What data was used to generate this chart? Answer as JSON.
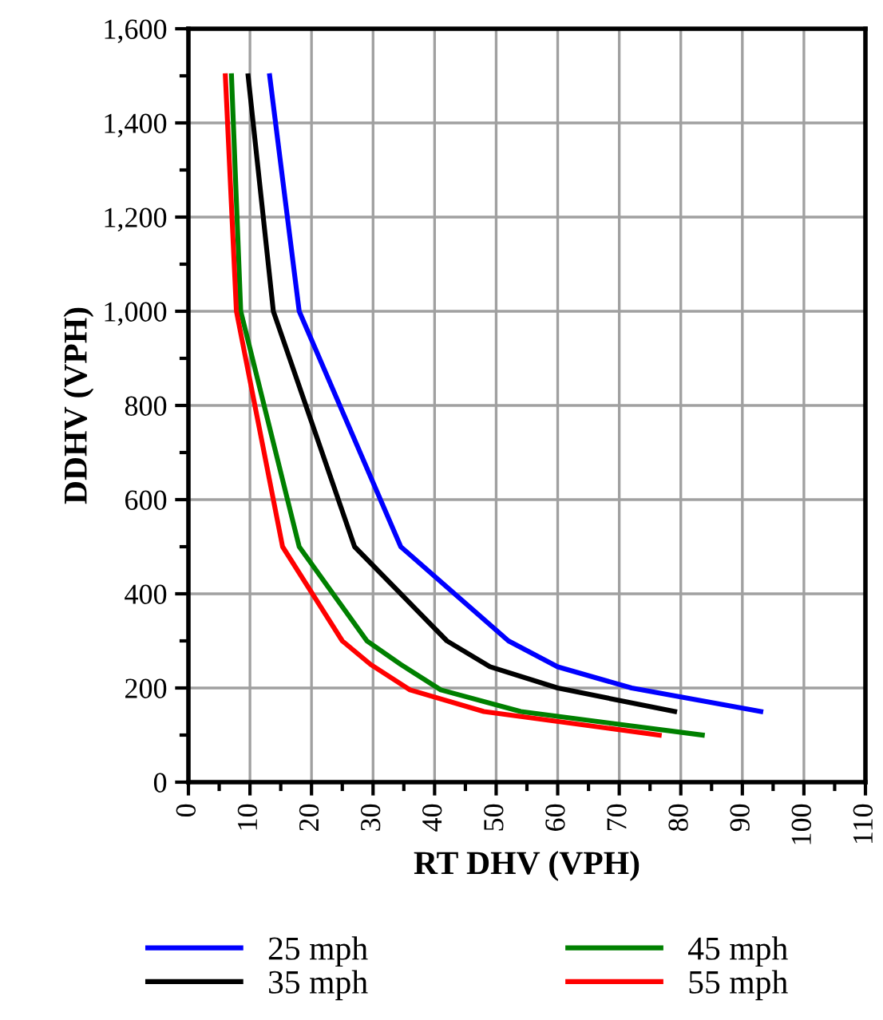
{
  "chart_data": {
    "type": "line",
    "xlabel": "RT DHV (VPH)",
    "ylabel": "DDHV (VPH)",
    "xlim": [
      0,
      110
    ],
    "xticks": [
      0,
      10,
      20,
      30,
      40,
      50,
      60,
      70,
      80,
      90,
      100,
      110
    ],
    "ylim": [
      0,
      1600
    ],
    "yticks": [
      {
        "value": 0,
        "label": "0"
      },
      {
        "value": 200,
        "label": "200"
      },
      {
        "value": 400,
        "label": "400"
      },
      {
        "value": 600,
        "label": "600"
      },
      {
        "value": 800,
        "label": "800"
      },
      {
        "value": 1000,
        "label": "1,000"
      },
      {
        "value": 1200,
        "label": "1,200"
      },
      {
        "value": 1400,
        "label": "1,400"
      },
      {
        "value": 1600,
        "label": "1,600"
      }
    ],
    "grid": true,
    "legend": "bottom",
    "marker": "none",
    "line_style": "solid",
    "series": [
      {
        "name": "25 mph",
        "color": "#0000ff",
        "x": [
          13.2,
          18,
          34.5,
          52,
          60,
          72,
          93
        ],
        "values": [
          1500,
          1000,
          500,
          300,
          245,
          200,
          150
        ]
      },
      {
        "name": "35 mph",
        "color": "#000000",
        "x": [
          9.7,
          13.8,
          27,
          42,
          49,
          60,
          79
        ],
        "values": [
          1500,
          1000,
          500,
          300,
          245,
          200,
          150
        ]
      },
      {
        "name": "45 mph",
        "color": "#008000",
        "x": [
          7,
          8.5,
          18,
          29,
          34.5,
          41,
          54,
          83.5
        ],
        "values": [
          1500,
          1000,
          500,
          300,
          250,
          196,
          150,
          100
        ]
      },
      {
        "name": "55 mph",
        "color": "#ff0000",
        "x": [
          6,
          7.8,
          15.3,
          25,
          29.6,
          36,
          48,
          76.5
        ],
        "values": [
          1500,
          1000,
          500,
          300,
          250,
          196,
          150,
          100
        ]
      }
    ]
  }
}
